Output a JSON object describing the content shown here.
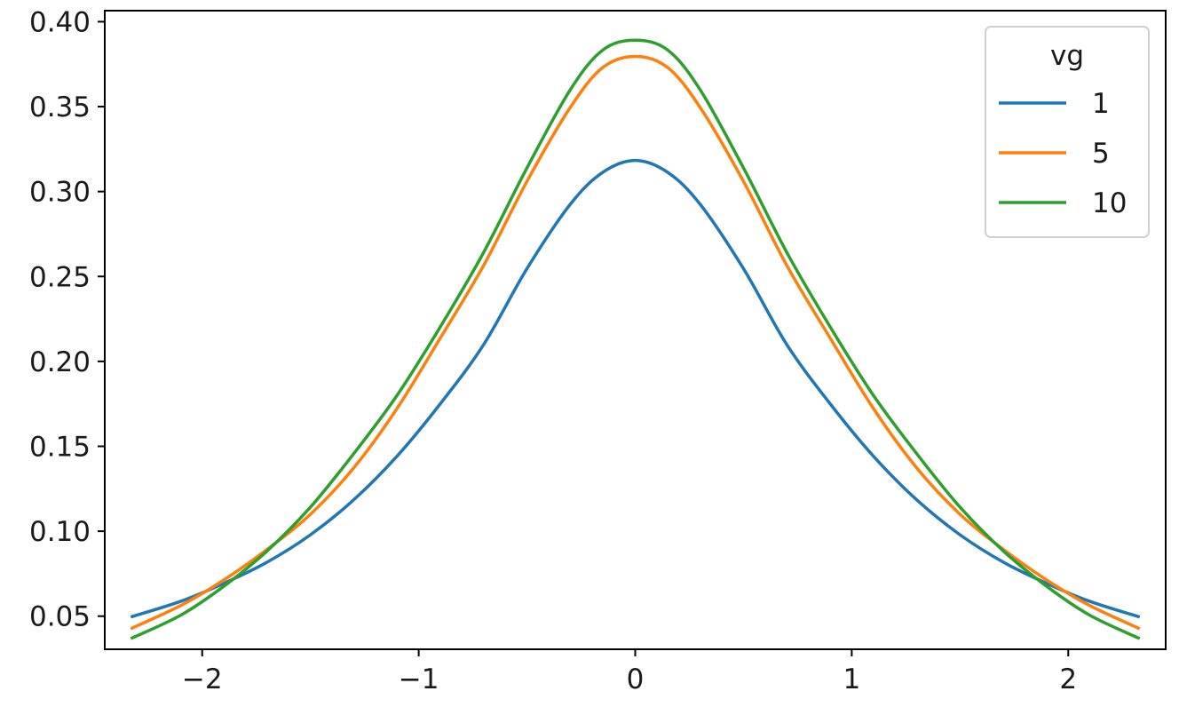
{
  "chart_data": {
    "type": "line",
    "title": "",
    "xlabel": "",
    "ylabel": "",
    "xlim": [
      -2.45,
      2.45
    ],
    "ylim": [
      0.0305,
      0.4065
    ],
    "x_ticks": [
      -2,
      -1,
      0,
      1,
      2
    ],
    "x_tick_labels": [
      "−2",
      "−1",
      "0",
      "1",
      "2"
    ],
    "y_ticks": [
      0.05,
      0.1,
      0.15,
      0.2,
      0.25,
      0.3,
      0.35,
      0.4
    ],
    "y_tick_labels": [
      "0.05",
      "0.10",
      "0.15",
      "0.20",
      "0.25",
      "0.30",
      "0.35",
      "0.40"
    ],
    "grid": false,
    "legend": {
      "title": "vg",
      "position": "top-right"
    },
    "x": [
      -2.33,
      -2.1,
      -1.9,
      -1.7,
      -1.5,
      -1.3,
      -1.1,
      -0.9,
      -0.7,
      -0.5,
      -0.3,
      -0.15,
      0.0,
      0.15,
      0.3,
      0.5,
      0.7,
      0.9,
      1.1,
      1.3,
      1.5,
      1.7,
      1.9,
      2.1,
      2.33
    ],
    "series": [
      {
        "name": "1",
        "color": "#1f77b4",
        "values": [
          0.0495,
          0.0587,
          0.0693,
          0.0818,
          0.0979,
          0.1185,
          0.1442,
          0.1751,
          0.2099,
          0.2546,
          0.2925,
          0.3113,
          0.3183,
          0.3113,
          0.2925,
          0.2546,
          0.2099,
          0.1751,
          0.1442,
          0.1185,
          0.0979,
          0.0818,
          0.0693,
          0.0587,
          0.0495
        ]
      },
      {
        "name": "5",
        "color": "#ff7f0e",
        "values": [
          0.0426,
          0.0562,
          0.0713,
          0.0893,
          0.11,
          0.1373,
          0.1723,
          0.2138,
          0.2565,
          0.306,
          0.3495,
          0.373,
          0.3796,
          0.373,
          0.3495,
          0.306,
          0.2565,
          0.2138,
          0.1723,
          0.1373,
          0.11,
          0.0893,
          0.0713,
          0.0562,
          0.0426
        ]
      },
      {
        "name": "10",
        "color": "#2ca02c",
        "values": [
          0.0368,
          0.0505,
          0.0676,
          0.0884,
          0.1142,
          0.1457,
          0.18,
          0.2204,
          0.2642,
          0.3139,
          0.3599,
          0.3833,
          0.3891,
          0.3833,
          0.3599,
          0.3139,
          0.2642,
          0.2204,
          0.18,
          0.1457,
          0.1142,
          0.0884,
          0.0676,
          0.0505,
          0.0368
        ]
      }
    ]
  }
}
